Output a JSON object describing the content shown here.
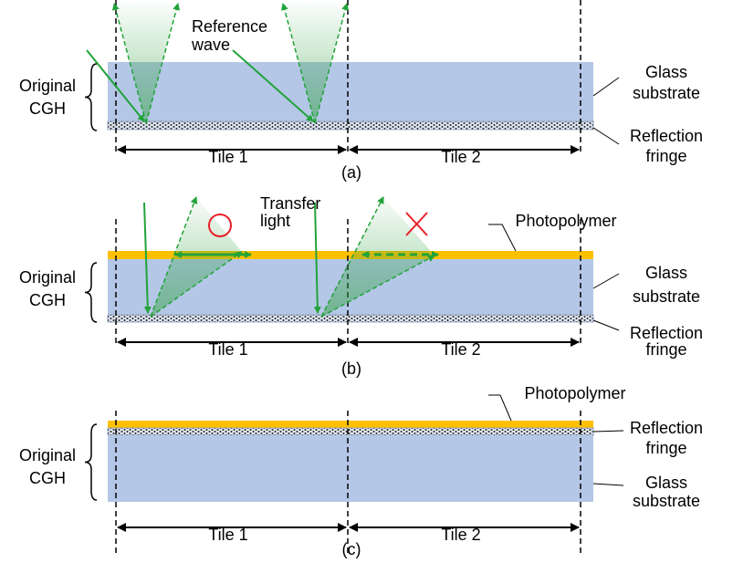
{
  "panels": [
    {
      "caption": "(a)",
      "original_cgh": [
        "Original",
        "CGH"
      ],
      "glass_substrate": [
        "Glass",
        "substrate"
      ],
      "reflection_fringe": [
        "Reflection",
        "fringe"
      ],
      "tiles": [
        "Tile 1",
        "Tile 2"
      ],
      "reference_wave": [
        "Reference",
        "wave"
      ]
    },
    {
      "caption": "(b)",
      "original_cgh": [
        "Original",
        "CGH"
      ],
      "glass_substrate": [
        "Glass",
        "substrate"
      ],
      "reflection_fringe": [
        "Reflection",
        "fringe"
      ],
      "tiles": [
        "Tile 1",
        "Tile 2"
      ],
      "transfer_light": [
        "Transfer",
        "light"
      ],
      "photopolymer": "Photopolymer"
    },
    {
      "caption": "(c)",
      "original_cgh": [
        "Original",
        "CGH"
      ],
      "glass_substrate": [
        "Glass",
        "substrate"
      ],
      "reflection_fringe": [
        "Reflection",
        "fringe"
      ],
      "tiles": [
        "Tile 1",
        "Tile 2"
      ],
      "photopolymer": "Photopolymer"
    }
  ]
}
